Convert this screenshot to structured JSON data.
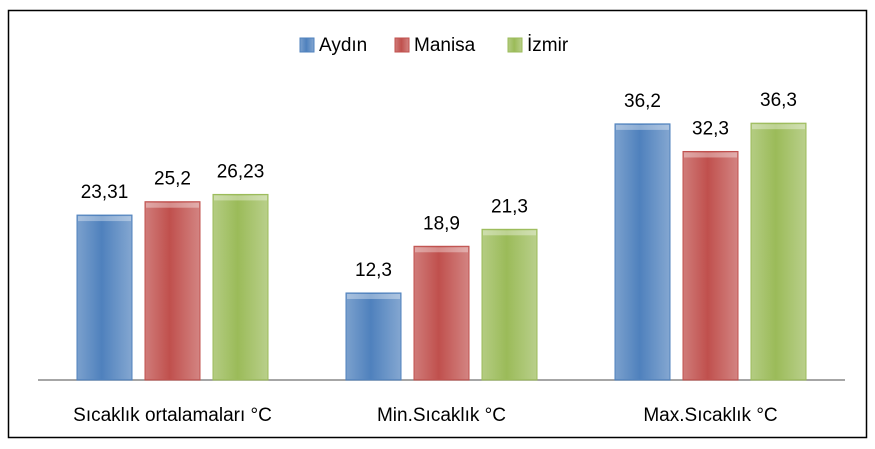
{
  "chart_data": {
    "type": "bar",
    "categories": [
      "Sıcaklık ortalamaları °C",
      "Min.Sıcaklık °C",
      "Max.Sıcaklık °C"
    ],
    "series": [
      {
        "name": "Aydın",
        "color": "#4f81bd",
        "values": [
          23.31,
          12.3,
          36.2
        ],
        "value_labels": [
          "23,31",
          "12,3",
          "36,2"
        ]
      },
      {
        "name": "Manisa",
        "color": "#c0504d",
        "values": [
          25.2,
          18.9,
          32.3
        ],
        "value_labels": [
          "25,2",
          "18,9",
          "32,3"
        ]
      },
      {
        "name": "İzmir",
        "color": "#9bbb59",
        "values": [
          26.23,
          21.3,
          36.3
        ],
        "value_labels": [
          "26,23",
          "21,3",
          "36,3"
        ]
      }
    ],
    "ylim": [
      0,
      40
    ],
    "legend": "top"
  }
}
